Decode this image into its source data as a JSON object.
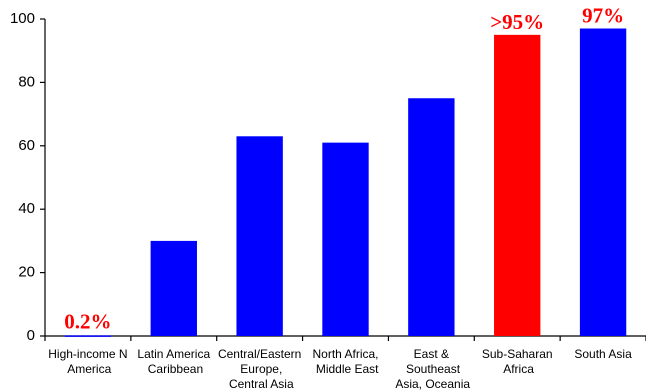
{
  "chart_data": {
    "type": "bar",
    "categories": [
      "High-income N America",
      "Latin America Caribbean",
      "Central/Eastern Europe, Central Asia",
      "North Africa, Middle East",
      "East & Southeast Asia, Oceania",
      "Sub-Saharan Africa",
      "South Asia"
    ],
    "values": [
      0.2,
      30,
      63,
      61,
      75,
      95,
      97
    ],
    "value_labels": [
      "0.2%",
      null,
      null,
      null,
      null,
      ">95%",
      "97%"
    ],
    "colors": [
      "#0000ff",
      "#0000ff",
      "#0000ff",
      "#0000ff",
      "#0000ff",
      "#ff0000",
      "#0000ff"
    ],
    "value_label_color": "#ff0000",
    "ylim": [
      0,
      100
    ],
    "yticks": [
      0,
      20,
      40,
      60,
      80,
      100
    ],
    "grid": false
  }
}
